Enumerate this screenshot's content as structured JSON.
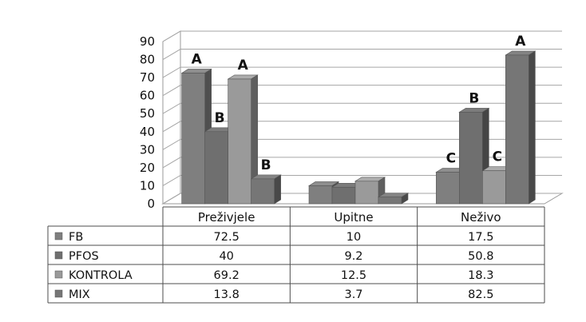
{
  "chart_data": {
    "type": "bar",
    "subtype": "3d-clustered-column-with-data-table",
    "title": "",
    "xlabel": "",
    "ylabel": "",
    "ylim": [
      0,
      90
    ],
    "yticks": [
      0,
      10,
      20,
      30,
      40,
      50,
      60,
      70,
      80,
      90
    ],
    "grid": true,
    "categories": [
      "Preživjele",
      "Upitne",
      "Neživo"
    ],
    "series": [
      {
        "name": "FB",
        "values": [
          72.5,
          10,
          17.5
        ],
        "value_labels": [
          "72.5",
          "10",
          "17.5"
        ],
        "letters": [
          "A",
          "",
          "C"
        ],
        "color": "#7f7f7f"
      },
      {
        "name": "PFOS",
        "values": [
          40,
          9.2,
          50.8
        ],
        "value_labels": [
          "40",
          "9.2",
          "50.8"
        ],
        "letters": [
          "B",
          "",
          "B"
        ],
        "color": "#6f6f6f"
      },
      {
        "name": "KONTROLA",
        "values": [
          69.2,
          12.5,
          18.3
        ],
        "value_labels": [
          "69.2",
          "12.5",
          "18.3"
        ],
        "letters": [
          "A",
          "",
          "C"
        ],
        "color": "#9a9a9a"
      },
      {
        "name": "MIX",
        "values": [
          13.8,
          3.7,
          82.5
        ],
        "value_labels": [
          "13.8",
          "3.7",
          "82.5"
        ],
        "letters": [
          "B",
          "",
          "A"
        ],
        "color": "#767676"
      }
    ]
  }
}
